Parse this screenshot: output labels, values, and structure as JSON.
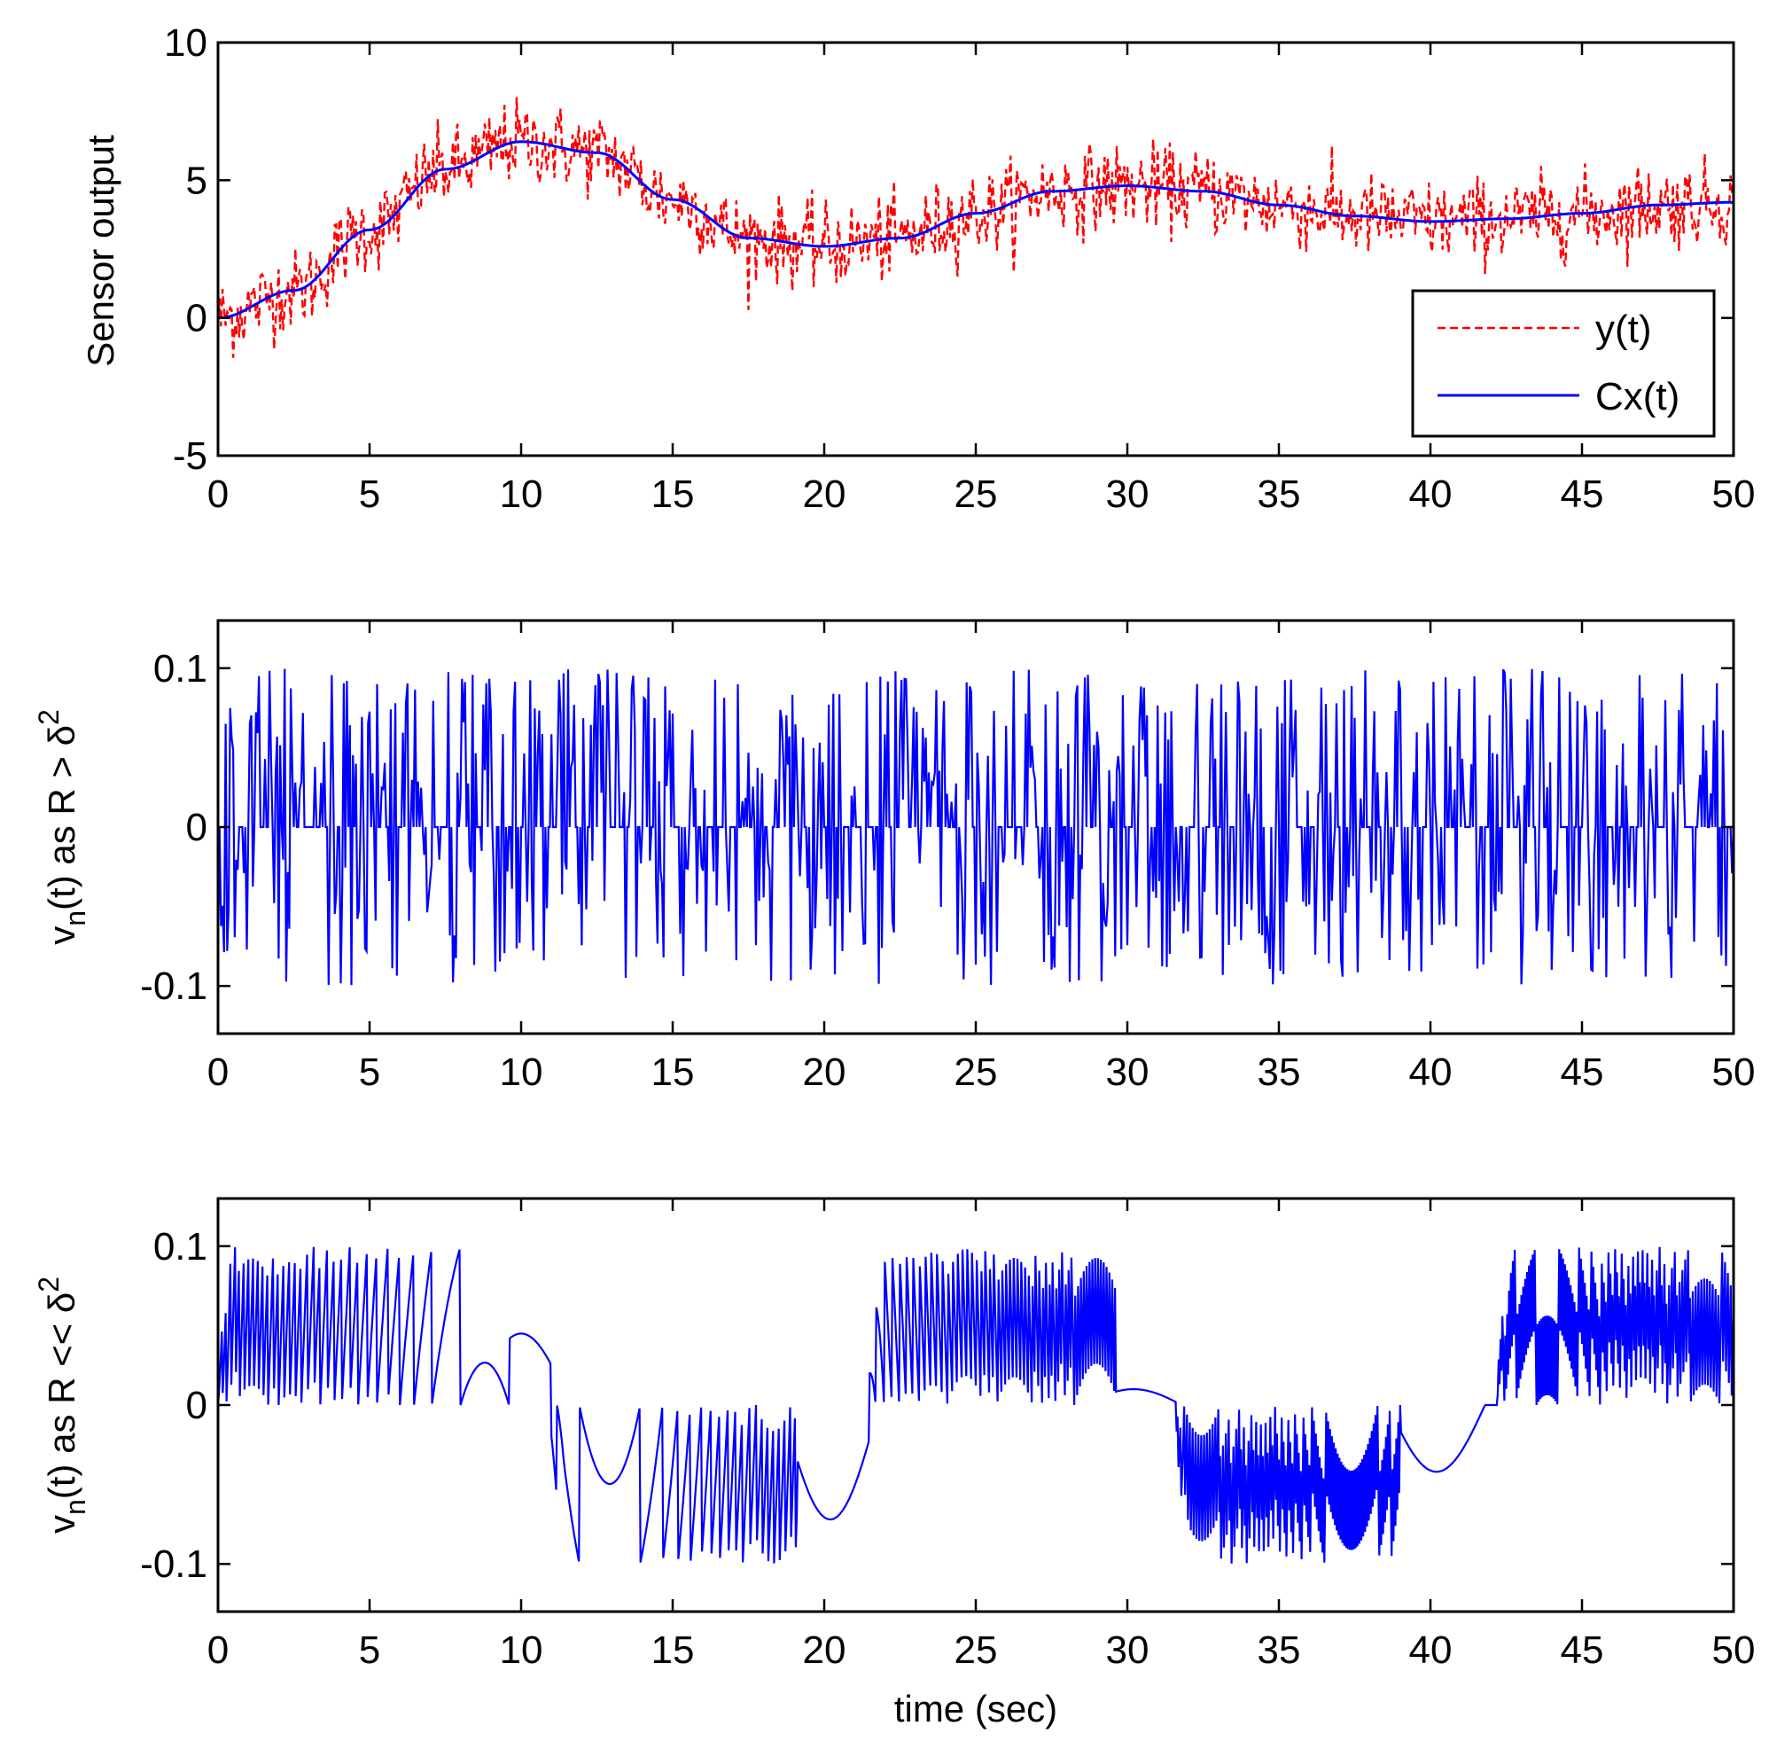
{
  "colors": {
    "y_series": "#ff0000",
    "cx_series": "#0000ff",
    "vn_series": "#0000ff",
    "axes": "#000000"
  },
  "chart_data": [
    {
      "type": "line",
      "title": "",
      "xlabel": "",
      "ylabel": "Sensor output",
      "xlim": [
        0,
        50
      ],
      "ylim": [
        -5,
        10
      ],
      "xticks": [
        0,
        5,
        10,
        15,
        20,
        25,
        30,
        35,
        40,
        45,
        50
      ],
      "xtick_labels": [
        "0",
        "5",
        "10",
        "15",
        "20",
        "25",
        "30",
        "35",
        "40",
        "45",
        "50"
      ],
      "yticks": [
        -5,
        0,
        5,
        10
      ],
      "ytick_labels": [
        "-5",
        "0",
        "5",
        "10"
      ],
      "legend": {
        "position": "bottom-right",
        "entries": [
          "y(t)",
          "Cx(t)"
        ]
      },
      "series": [
        {
          "name": "y(t)",
          "style": "red dashed, noisy measurement of Cx(t)",
          "x": [
            0,
            2.5,
            5,
            7.5,
            10,
            12.5,
            15,
            17.5,
            20,
            22.5,
            25,
            27.5,
            30,
            32.5,
            35,
            37.5,
            40,
            42.5,
            45,
            47.5,
            50
          ],
          "values": [
            0,
            1.0,
            3.2,
            5.4,
            6.4,
            6.0,
            4.3,
            2.9,
            2.6,
            2.9,
            3.8,
            4.6,
            4.8,
            4.6,
            4.1,
            3.7,
            3.5,
            3.6,
            3.8,
            4.1,
            4.2
          ]
        },
        {
          "name": "Cx(t)",
          "style": "blue solid",
          "x": [
            0,
            2.5,
            5,
            7.5,
            10,
            12.5,
            15,
            17.5,
            20,
            22.5,
            25,
            27.5,
            30,
            32.5,
            35,
            37.5,
            40,
            42.5,
            45,
            47.5,
            50
          ],
          "values": [
            0,
            1.0,
            3.2,
            5.4,
            6.4,
            6.0,
            4.3,
            2.9,
            2.6,
            2.9,
            3.8,
            4.6,
            4.8,
            4.6,
            4.1,
            3.7,
            3.5,
            3.6,
            3.8,
            4.1,
            4.2
          ]
        }
      ]
    },
    {
      "type": "line",
      "title": "",
      "xlabel": "",
      "ylabel": "v_n(t) as R > δ^2",
      "ylabel_parts": {
        "main": "v",
        "sub": "n",
        "rest": "(t) as R > δ",
        "sup": "2"
      },
      "xlim": [
        0,
        50
      ],
      "ylim": [
        -0.13,
        0.13
      ],
      "xticks": [
        0,
        5,
        10,
        15,
        20,
        25,
        30,
        35,
        40,
        45,
        50
      ],
      "xtick_labels": [
        "0",
        "5",
        "10",
        "15",
        "20",
        "25",
        "30",
        "35",
        "40",
        "45",
        "50"
      ],
      "yticks": [
        -0.1,
        0,
        0.1
      ],
      "ytick_labels": [
        "-0.1",
        "0",
        "0.1"
      ],
      "series": [
        {
          "name": "v_n(t), R > δ^2",
          "description": "sparse spikes between -0.1 and 0.1 around zero baseline",
          "value_range": [
            -0.1,
            0.1
          ]
        }
      ]
    },
    {
      "type": "line",
      "title": "",
      "xlabel": "time (sec)",
      "ylabel": "v_n(t) as R << δ^2",
      "ylabel_parts": {
        "main": "v",
        "sub": "n",
        "rest": "(t) as R << δ",
        "sup": "2"
      },
      "xlim": [
        0,
        50
      ],
      "ylim": [
        -0.13,
        0.13
      ],
      "xticks": [
        0,
        5,
        10,
        15,
        20,
        25,
        30,
        35,
        40,
        45,
        50
      ],
      "xtick_labels": [
        "0",
        "5",
        "10",
        "15",
        "20",
        "25",
        "30",
        "35",
        "40",
        "45",
        "50"
      ],
      "yticks": [
        -0.1,
        0,
        0.1
      ],
      "ytick_labels": [
        "-0.1",
        "0",
        "0.1"
      ],
      "series": [
        {
          "name": "v_n(t), R << δ^2",
          "description": "sawtooth segments: positive 0-9.6s, negative 11-19s, positive 21.5-29.6s, negative 31.5-39s, positive 42-50s",
          "segments": [
            {
              "x": [
                0,
                9.6
              ],
              "sign": "positive",
              "peak": 0.1
            },
            {
              "x": [
                11.0,
                19.1
              ],
              "sign": "negative",
              "peak": -0.1
            },
            {
              "x": [
                21.5,
                29.6
              ],
              "sign": "positive",
              "peak": 0.1
            },
            {
              "x": [
                31.6,
                39.0
              ],
              "sign": "negative",
              "peak": -0.1
            },
            {
              "x": [
                42.2,
                50.0
              ],
              "sign": "positive",
              "peak": 0.1
            }
          ]
        }
      ]
    }
  ]
}
